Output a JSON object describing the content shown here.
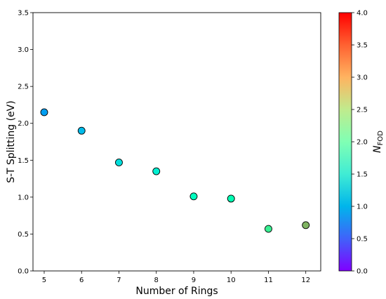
{
  "chart_data": {
    "type": "scatter",
    "title": "",
    "xlabel": "Number of Rings",
    "ylabel": "S-T Splitting (eV)",
    "xlim": [
      4.7,
      12.4
    ],
    "ylim": [
      0,
      3.5
    ],
    "xticks": [
      "5",
      "6",
      "7",
      "8",
      "9",
      "10",
      "11",
      "12"
    ],
    "yticks": [
      "0.0",
      "0.5",
      "1.0",
      "1.5",
      "2.0",
      "2.5",
      "3.0",
      "3.5"
    ],
    "grid": false,
    "series": [
      {
        "x": [
          5,
          6,
          7,
          8,
          9,
          10,
          11,
          12
        ],
        "y": [
          2.15,
          1.9,
          1.47,
          1.35,
          1.01,
          0.98,
          0.57,
          0.62
        ],
        "c": [
          0.85,
          1.05,
          1.35,
          1.55,
          1.85,
          2.0,
          2.45,
          3.0
        ]
      }
    ],
    "colorbar": {
      "label_main": "N",
      "label_sub": "FOD",
      "colormap": "rainbow",
      "range": [
        0,
        4
      ],
      "ticks": [
        "0.0",
        "0.5",
        "1.0",
        "1.5",
        "2.0",
        "2.5",
        "3.0",
        "3.5",
        "4.0"
      ]
    }
  }
}
